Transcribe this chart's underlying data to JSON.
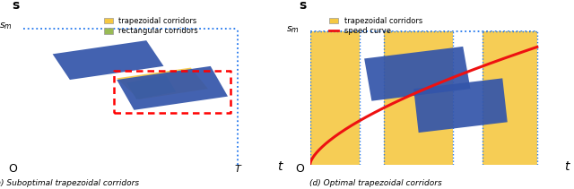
{
  "fig_width": 6.4,
  "fig_height": 2.11,
  "dpi": 100,
  "bg_color": "#ffffff",
  "blue_color": "#3355aa",
  "yellow_color": "#f5c842",
  "green_color": "#99bb55",
  "red_color": "#ee1111",
  "axis_color": "#2277ee",
  "caption_left": "(a) Suboptimal trapezoidal corridors",
  "caption_right": "(d) Optimal trapezoidal corridors",
  "left_legend": [
    {
      "label": "trapezoidal corridors",
      "color": "#f5c842"
    },
    {
      "label": "rectangular corridors",
      "color": "#99bb55"
    }
  ],
  "right_legend": [
    {
      "label": "trapezoidal corridors",
      "color": "#f5c842"
    },
    {
      "label": "speed curve",
      "color": "#ee1111"
    }
  ]
}
